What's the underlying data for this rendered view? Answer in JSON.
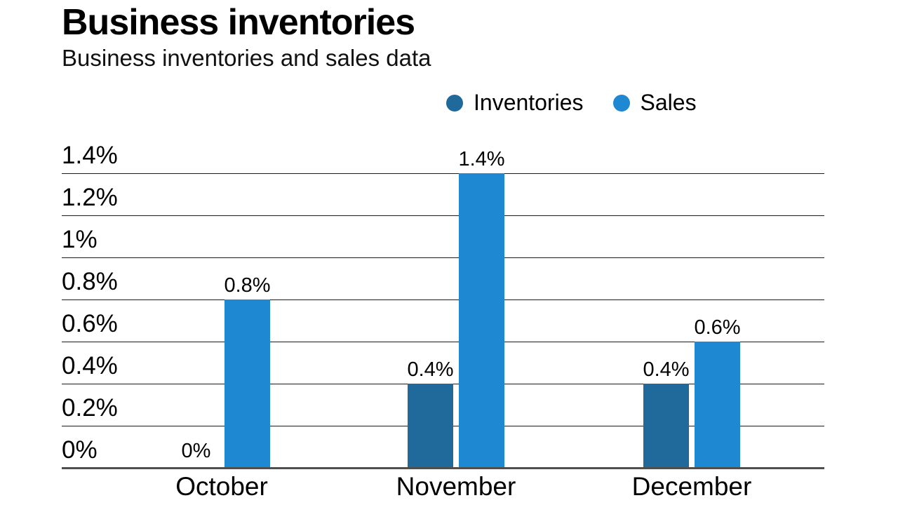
{
  "header": {
    "title": "Business inventories",
    "subtitle": "Business inventories and sales data"
  },
  "legend": [
    {
      "label": "Inventories",
      "color": "#1f6a9b"
    },
    {
      "label": "Sales",
      "color": "#1f88d2"
    }
  ],
  "chart_data": {
    "type": "bar",
    "title": "Business inventories",
    "subtitle": "Business inventories and sales data",
    "categories": [
      "October",
      "November",
      "December"
    ],
    "series": [
      {
        "name": "Inventories",
        "color": "#1f6a9b",
        "values": [
          0,
          0.4,
          0.4
        ],
        "labels": [
          "0%",
          "0.4%",
          "0.4%"
        ]
      },
      {
        "name": "Sales",
        "color": "#1f88d2",
        "values": [
          0.8,
          1.4,
          0.6
        ],
        "labels": [
          "0.8%",
          "1.4%",
          "0.6%"
        ]
      }
    ],
    "y_ticks": [
      "1.4%",
      "1.2%",
      "1%",
      "0.8%",
      "0.6%",
      "0.4%",
      "0.2%",
      "0%"
    ],
    "ylim": [
      0,
      1.4
    ],
    "unit": "percent",
    "grid": true,
    "legend_position": "top-right",
    "data_labels": true
  }
}
